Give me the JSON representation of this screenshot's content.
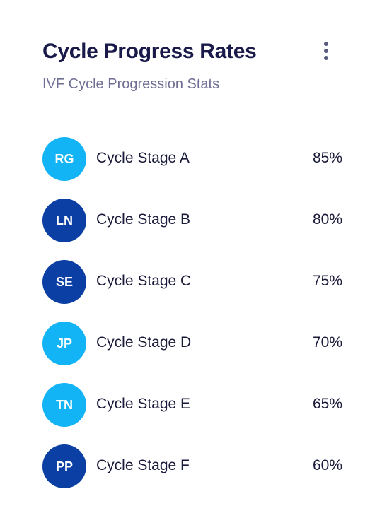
{
  "header": {
    "title": "Cycle Progress Rates",
    "subtitle": "IVF Cycle Progression Stats",
    "menu_icon": "more-vertical-icon"
  },
  "stages": [
    {
      "initials": "RG",
      "label": "Cycle Stage A",
      "value": "85%",
      "color": "#12b4f5"
    },
    {
      "initials": "LN",
      "label": "Cycle Stage B",
      "value": "80%",
      "color": "#0b3fa3"
    },
    {
      "initials": "SE",
      "label": "Cycle Stage C",
      "value": "75%",
      "color": "#0b3fa3"
    },
    {
      "initials": "JP",
      "label": "Cycle Stage D",
      "value": "70%",
      "color": "#12b4f5"
    },
    {
      "initials": "TN",
      "label": "Cycle Stage E",
      "value": "65%",
      "color": "#12b4f5"
    },
    {
      "initials": "PP",
      "label": "Cycle Stage F",
      "value": "60%",
      "color": "#0b3fa3"
    }
  ]
}
